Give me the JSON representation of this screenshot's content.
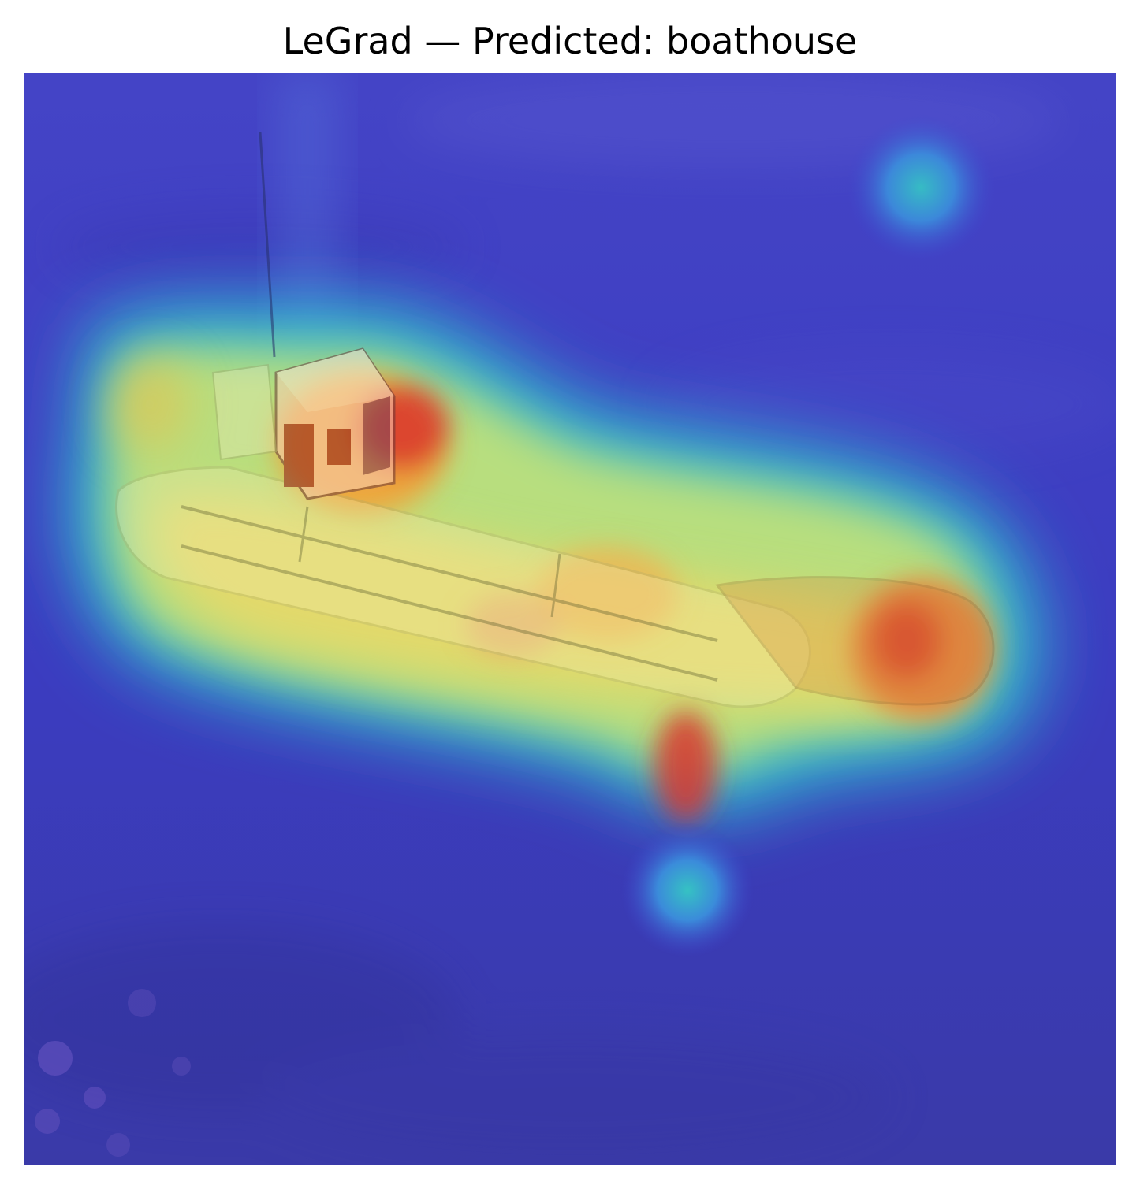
{
  "figure": {
    "title": "LeGrad — Predicted: boathouse"
  },
  "overlay": {
    "colormap": "jet",
    "colors": {
      "low": "#3b3fc8",
      "mid_low": "#22b7d6",
      "mid": "#d9e46a",
      "mid_high": "#f0a23a",
      "high": "#d8362d"
    }
  }
}
